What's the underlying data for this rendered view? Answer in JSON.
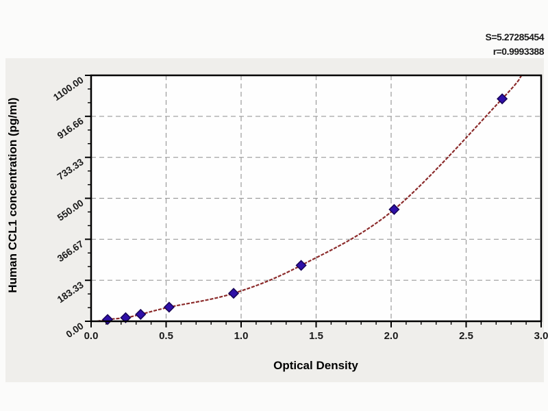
{
  "stats": {
    "s_label": "S=5.27285454",
    "r_label": "r=0.9993388"
  },
  "colors": {
    "page_bg": "#fbfbfa",
    "panel_bg": "#efeeeb",
    "plot_bg": "#fefefe",
    "frame": "#000000",
    "grid": "#9a9a9a",
    "curve": "#8b2a2a",
    "marker_fill": "#2f10a8",
    "marker_edge": "#160355",
    "text": "#1a1a1a"
  },
  "chart_data": {
    "type": "scatter",
    "title": "",
    "xlabel": "Optical Density",
    "ylabel": "Human CCL1 concentration (pg/ml)",
    "xlim": [
      0,
      3.0
    ],
    "ylim": [
      0,
      1100
    ],
    "x_ticks": [
      0.0,
      0.5,
      1.0,
      1.5,
      2.0,
      2.5,
      3.0
    ],
    "x_tick_labels": [
      "0.0",
      "0.5",
      "1.0",
      "1.5",
      "2.0",
      "2.5",
      "3.0"
    ],
    "x_minor_step": 0.1,
    "y_ticks": [
      0,
      183.33,
      366.67,
      550.0,
      733.33,
      916.66,
      1100.0
    ],
    "y_tick_labels": [
      "0.00",
      "183.33",
      "366.67",
      "550.00",
      "733.33",
      "916.66",
      "1100.00"
    ],
    "y_minors_between_majors": 2,
    "grid": "dashed",
    "legend": "none",
    "series": [
      {
        "name": "standard-points",
        "type": "scatter",
        "marker": "diamond",
        "x": [
          0.11,
          0.23,
          0.33,
          0.52,
          0.95,
          1.4,
          2.02,
          2.74
        ],
        "y": [
          8,
          16,
          31,
          63,
          125,
          250,
          500,
          995
        ]
      },
      {
        "name": "fit-curve",
        "type": "line",
        "x": [
          0.04,
          0.11,
          0.23,
          0.33,
          0.52,
          0.95,
          1.4,
          2.02,
          2.74,
          2.87
        ],
        "y": [
          0,
          8,
          16,
          31,
          63,
          125,
          250,
          500,
          995,
          1100
        ]
      }
    ]
  }
}
